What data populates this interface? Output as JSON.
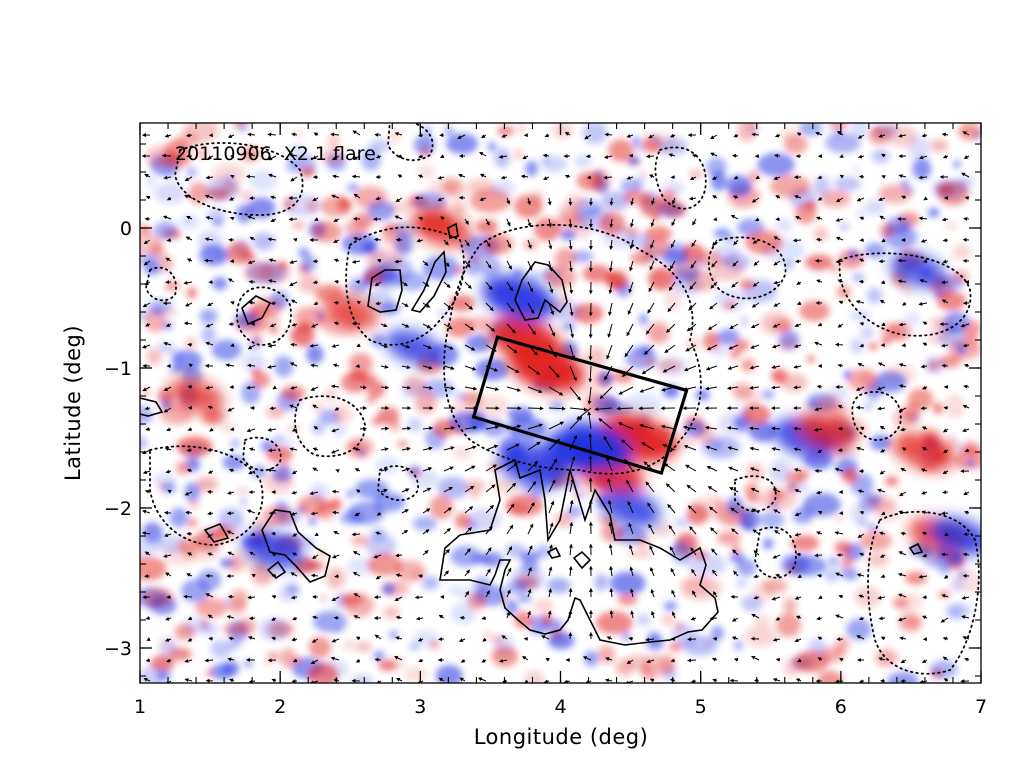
{
  "chart_data": {
    "type": "heatmap",
    "title": "20110906  X2.1 flare",
    "xlabel": "Longitude (deg)",
    "ylabel": "Latitude (deg)",
    "xlim": [
      1,
      7
    ],
    "ylim": [
      -3.25,
      0.75
    ],
    "xticks": [
      1,
      2,
      3,
      4,
      5,
      6,
      7
    ],
    "yticks": [
      0,
      -1,
      -2,
      -3
    ],
    "xtick_labels": [
      "1",
      "2",
      "3",
      "4",
      "5",
      "6",
      "7"
    ],
    "ytick_labels": [
      "0",
      "−1",
      "−2",
      "−3"
    ],
    "colormap": {
      "positive": "#e0201c",
      "negative": "#1c2ee0",
      "zero": "#ffffff"
    },
    "grid": false,
    "overlays": {
      "box_corners_deg": [
        [
          3.55,
          -0.78
        ],
        [
          4.9,
          -1.16
        ],
        [
          4.72,
          -1.75
        ],
        [
          3.38,
          -1.35
        ]
      ],
      "features": [
        {
          "lon": 3.9,
          "lat": -1.0,
          "sign": 1,
          "strength": 1.0
        },
        {
          "lon": 3.75,
          "lat": -0.8,
          "sign": 1,
          "strength": 0.9
        },
        {
          "lon": 4.55,
          "lat": -1.5,
          "sign": 1,
          "strength": 1.0
        },
        {
          "lon": 4.35,
          "lat": -1.75,
          "sign": 1,
          "strength": 0.8
        },
        {
          "lon": 3.7,
          "lat": -0.5,
          "sign": -1,
          "strength": 0.9
        },
        {
          "lon": 4.25,
          "lat": -1.55,
          "sign": -1,
          "strength": 0.9
        },
        {
          "lon": 4.1,
          "lat": -1.6,
          "sign": -1,
          "strength": 0.7
        },
        {
          "lon": 3.8,
          "lat": -1.7,
          "sign": -1,
          "strength": 0.8
        },
        {
          "lon": 4.5,
          "lat": -2.0,
          "sign": -1,
          "strength": 0.6
        },
        {
          "lon": 5.75,
          "lat": -1.5,
          "sign": -1,
          "strength": 0.7
        },
        {
          "lon": 5.9,
          "lat": -1.45,
          "sign": 1,
          "strength": 0.6
        },
        {
          "lon": 6.6,
          "lat": -1.6,
          "sign": 1,
          "strength": 0.6
        },
        {
          "lon": 6.7,
          "lat": -2.2,
          "sign": 1,
          "strength": 0.6
        },
        {
          "lon": 6.85,
          "lat": -2.2,
          "sign": -1,
          "strength": 0.6
        },
        {
          "lon": 6.55,
          "lat": -0.3,
          "sign": -1,
          "strength": 0.5
        },
        {
          "lon": 3.15,
          "lat": 0.0,
          "sign": 1,
          "strength": 0.6
        },
        {
          "lon": 1.95,
          "lat": -2.3,
          "sign": -1,
          "strength": 0.6
        },
        {
          "lon": 2.95,
          "lat": -0.85,
          "sign": -1,
          "strength": 0.5
        },
        {
          "lon": 1.4,
          "lat": -1.2,
          "sign": 1,
          "strength": 0.5
        },
        {
          "lon": 2.5,
          "lat": -0.6,
          "sign": 1,
          "strength": 0.5
        }
      ]
    }
  }
}
